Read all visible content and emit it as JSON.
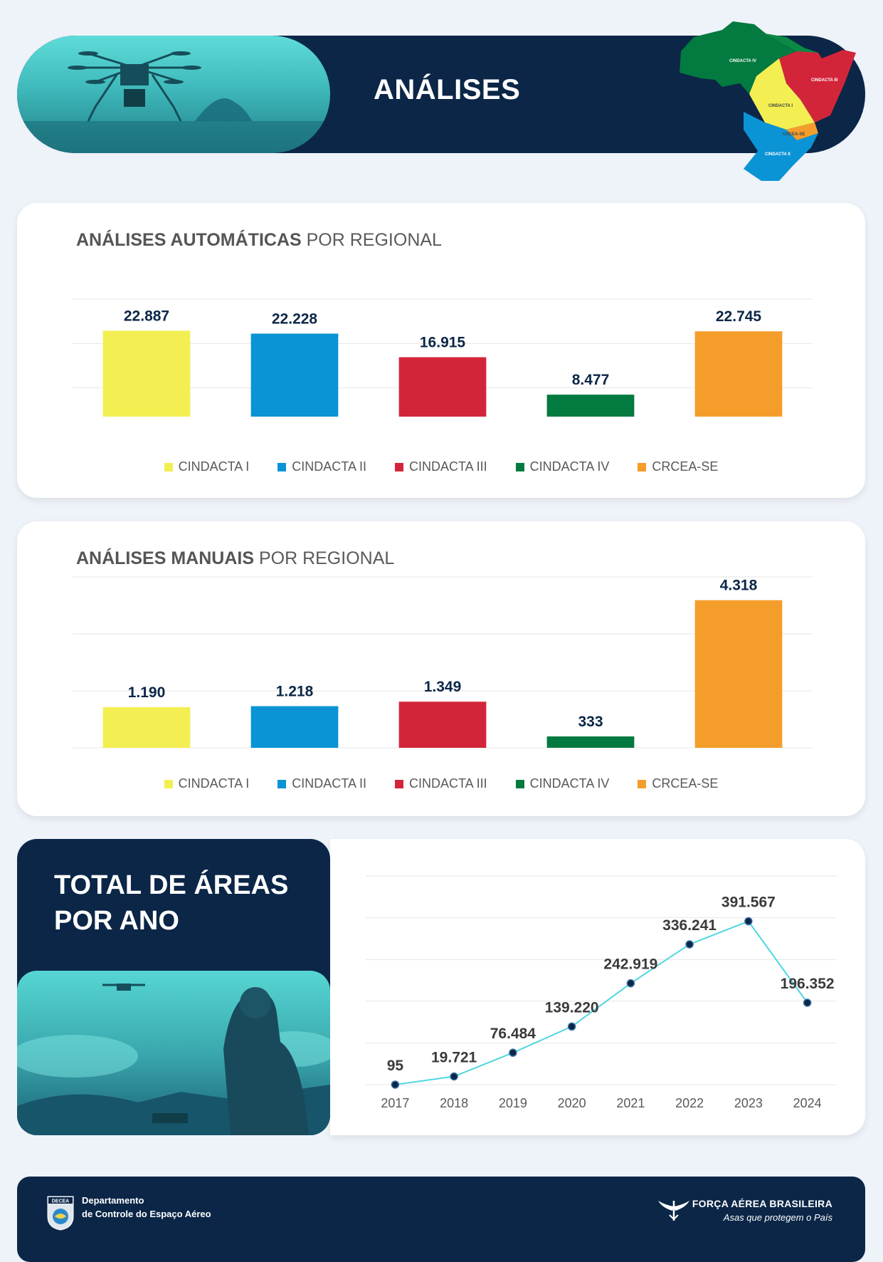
{
  "header": {
    "title": "ANÁLISES",
    "map_labels": [
      "CINDACTA IV",
      "CINDACTA III",
      "CINDACTA I",
      "CRCEA-SE",
      "CINDACTA II"
    ]
  },
  "colors": {
    "navy": "#0b2647",
    "CINDACTA I": "#f3ef52",
    "CINDACTA II": "#0a94d6",
    "CINDACTA III": "#d3253a",
    "CINDACTA IV": "#037a3f",
    "CRCEA-SE": "#f59d2b",
    "line": "#4dd6e0"
  },
  "auto_title": {
    "bold": "ANÁLISES AUTOMÁTICAS",
    "rest": " POR REGIONAL"
  },
  "manual_title": {
    "bold": "ANÁLISES MANUAIS",
    "rest": " POR REGIONAL"
  },
  "total": {
    "title_line1": "TOTAL DE ÁREAS",
    "title_line2": "POR ANO"
  },
  "chart_data": [
    {
      "type": "bar",
      "title": "ANÁLISES AUTOMÁTICAS POR REGIONAL",
      "categories": [
        "CINDACTA I",
        "CINDACTA II",
        "CINDACTA III",
        "CINDACTA IV",
        "CRCEA-SE"
      ],
      "values": [
        22887,
        22228,
        16915,
        8477,
        22745
      ],
      "labels": [
        "22.887",
        "22.228",
        "16.915",
        "8.477",
        "22.745"
      ],
      "ylim": [
        0,
        30000
      ],
      "grid": true,
      "legend": "bottom"
    },
    {
      "type": "bar",
      "title": "ANÁLISES MANUAIS POR REGIONAL",
      "categories": [
        "CINDACTA I",
        "CINDACTA II",
        "CINDACTA III",
        "CINDACTA IV",
        "CRCEA-SE"
      ],
      "values": [
        1190,
        1218,
        1349,
        333,
        4318
      ],
      "labels": [
        "1.190",
        "1.218",
        "1.349",
        "333",
        "4.318"
      ],
      "ylim": [
        0,
        5000
      ],
      "grid": true,
      "legend": "bottom"
    },
    {
      "type": "line",
      "title": "TOTAL DE ÁREAS POR ANO",
      "x": [
        "2017",
        "2018",
        "2019",
        "2020",
        "2021",
        "2022",
        "2023",
        "2024"
      ],
      "values": [
        95,
        19721,
        76484,
        139220,
        242919,
        336241,
        391567,
        196352
      ],
      "labels": [
        "95",
        "19.721",
        "76.484",
        "139.220",
        "242.919",
        "336.241",
        "391.567",
        "196.352"
      ],
      "ylim": [
        0,
        500000
      ],
      "grid": true
    }
  ],
  "footer": {
    "dept_line1": "Departamento",
    "dept_line2": "de Controle do Espaço Aéreo",
    "logo_text": "DECEA",
    "fab_name": "FORÇA AÉREA BRASILEIRA",
    "fab_motto": "Asas que protegem o País"
  }
}
